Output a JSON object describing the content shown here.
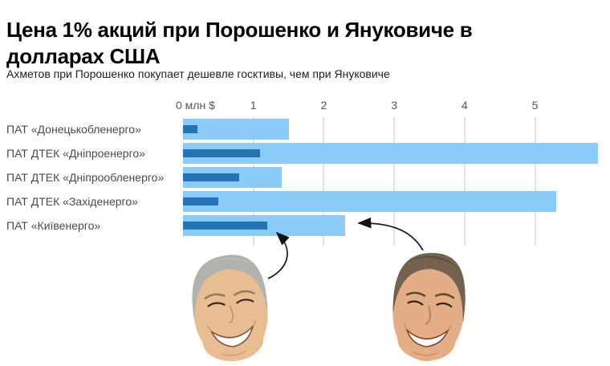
{
  "header": {
    "title": "Цена 1% акций при Порошенко и Януковиче в долларах США",
    "subtitle": "Ахметов при Порошенко покупает дешевле госктивы, чем при Януковиче"
  },
  "chart_data": {
    "type": "bar",
    "orientation": "horizontal",
    "title": "Цена 1% акций при Порошенко и Януковиче в долларах США",
    "subtitle": "Ахметов при Порошенко покупает дешевле госктивы, чем при Януковиче",
    "categories": [
      "ПАТ «Донецькобленерго»",
      "ПАТ ДТЕК «Дніпроенерго»",
      "ПАТ ДТЕК «Дніпрообленерго»",
      "ПАТ ДТЕК «Західенерго»",
      "ПАТ «Київенерго»"
    ],
    "series": [
      {
        "name": "при Порошенко",
        "style": "inner-dark-bar",
        "color": "#2274b4",
        "values": [
          0.2,
          1.1,
          0.8,
          0.5,
          1.2
        ]
      },
      {
        "name": "при Януковиче",
        "style": "outer-light-bar",
        "color": "#8bcbf9",
        "values": [
          1.5,
          5.9,
          1.4,
          5.3,
          2.3
        ]
      }
    ],
    "x_axis": {
      "zero_label": "0 млн $",
      "ticks": [
        1,
        2,
        3,
        4,
        5
      ],
      "range": [
        0,
        6.1
      ],
      "unit": "млн $"
    },
    "grid": "vertical",
    "legend_position": "none",
    "annotations": [
      {
        "face": "Порошенко",
        "arrow_points_to": {
          "category": "ПАТ «Київенерго»",
          "series": "при Порошенко",
          "value": 1.2
        }
      },
      {
        "face": "Янукович",
        "arrow_points_to": {
          "category": "ПАТ «Київенерго»",
          "series": "при Януковиче",
          "value": 2.3
        }
      }
    ],
    "colors": {
      "bar_dark": "#2274b4",
      "bar_light": "#8bcbf9",
      "gridline": "#e3e3e3",
      "axis_text": "#55585d",
      "category_text": "#4a4a4a"
    }
  }
}
